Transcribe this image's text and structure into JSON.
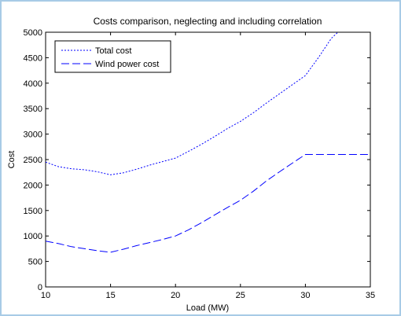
{
  "chart_data": {
    "type": "line",
    "title": "Costs comparison, neglecting and including correlation",
    "xlabel": "Load (MW)",
    "ylabel": "Cost",
    "xlim": [
      10,
      35
    ],
    "ylim": [
      0,
      5000
    ],
    "xticks": [
      10,
      15,
      20,
      25,
      30,
      35
    ],
    "yticks": [
      0,
      500,
      1000,
      1500,
      2000,
      2500,
      3000,
      3500,
      4000,
      4500,
      5000
    ],
    "grid": false,
    "legend_position": "top-left",
    "background_color": "#ffffff",
    "frame_color": "#a8cbe6",
    "series": [
      {
        "name": "Total cost",
        "color": "#0000ff",
        "style": "dotted",
        "x": [
          10,
          11,
          12,
          13,
          14,
          15,
          16,
          17,
          18,
          19,
          20,
          21,
          22,
          23,
          24,
          25,
          26,
          27,
          28,
          29,
          30,
          31,
          32,
          32.5
        ],
        "y": [
          2450,
          2360,
          2320,
          2300,
          2260,
          2200,
          2240,
          2310,
          2390,
          2460,
          2530,
          2660,
          2800,
          2950,
          3110,
          3250,
          3420,
          3610,
          3790,
          3970,
          4150,
          4500,
          4880,
          5000
        ]
      },
      {
        "name": "Wind power cost",
        "color": "#0000ff",
        "style": "dashed",
        "x": [
          10,
          11,
          12,
          13,
          14,
          15,
          16,
          17,
          18,
          19,
          20,
          21,
          22,
          23,
          24,
          25,
          26,
          27,
          28,
          29,
          30,
          31,
          32,
          33,
          34,
          35
        ],
        "y": [
          900,
          850,
          790,
          750,
          710,
          680,
          740,
          810,
          870,
          930,
          1000,
          1120,
          1260,
          1410,
          1560,
          1700,
          1880,
          2080,
          2260,
          2430,
          2600,
          2600,
          2600,
          2600,
          2600,
          2600
        ]
      }
    ]
  }
}
